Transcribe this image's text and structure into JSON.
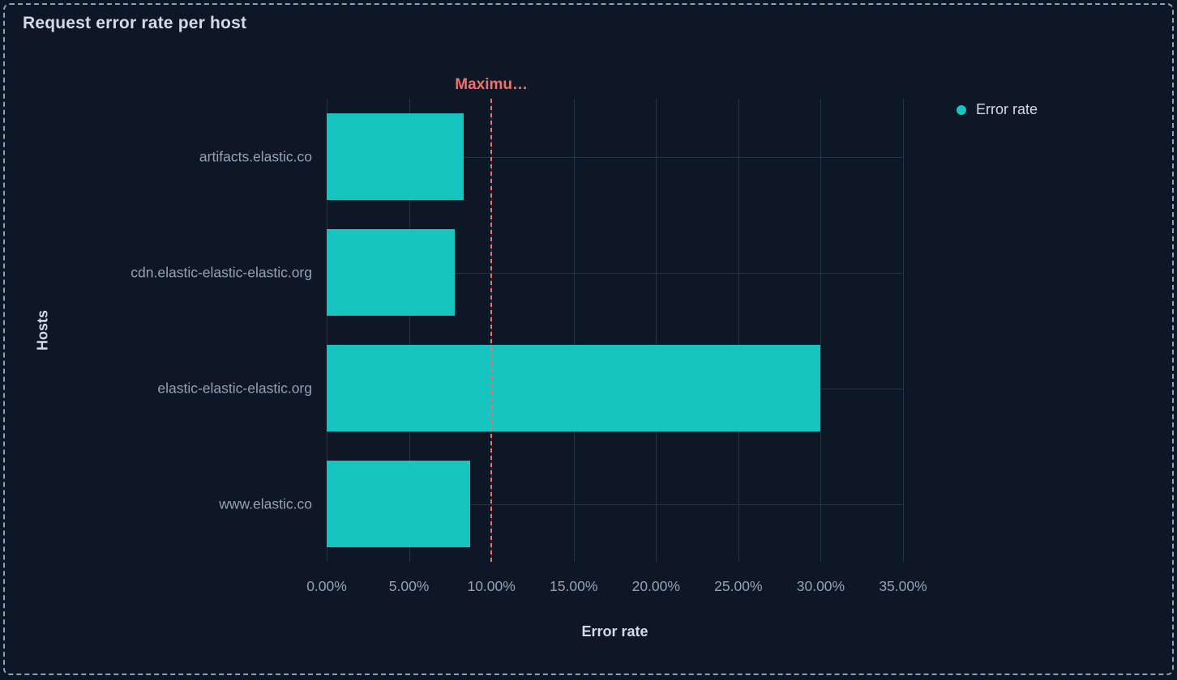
{
  "panel": {
    "title": "Request error rate per host"
  },
  "legend": {
    "position": "right",
    "items": [
      {
        "label": "Error rate",
        "color": "#16c5c0"
      }
    ]
  },
  "chart_data": {
    "type": "bar",
    "orientation": "horizontal",
    "title": "Request error rate per host",
    "categories": [
      "artifacts.elastic.co",
      "cdn.elastic-elastic-elastic.org",
      "elastic-elastic-elastic.org",
      "www.elastic.co"
    ],
    "series": [
      {
        "name": "Error rate",
        "values": [
          8.3,
          7.8,
          30.0,
          8.7
        ],
        "unit": "%",
        "color": "#16c5c0"
      }
    ],
    "xlabel": "Error rate",
    "ylabel": "Hosts",
    "xlim": [
      0,
      35
    ],
    "x_tick_values": [
      0,
      5,
      10,
      15,
      20,
      25,
      30,
      35
    ],
    "x_tick_labels": [
      "0.00%",
      "5.00%",
      "10.00%",
      "15.00%",
      "20.00%",
      "25.00%",
      "30.00%",
      "35.00%"
    ],
    "grid": true,
    "legend_position": "right",
    "threshold": {
      "label": "Maximu…",
      "value": 10,
      "color": "#f0716a",
      "style": "dashed"
    }
  },
  "colors": {
    "background": "#0e1726",
    "panel_border": "#8ea0bd",
    "title_text": "#d3dbe8",
    "axis_label_text": "#96a1b6",
    "axis_title_text": "#d3dbe8",
    "gridline": "#253349",
    "bar": "#16c5c0",
    "threshold": "#f0716a"
  }
}
